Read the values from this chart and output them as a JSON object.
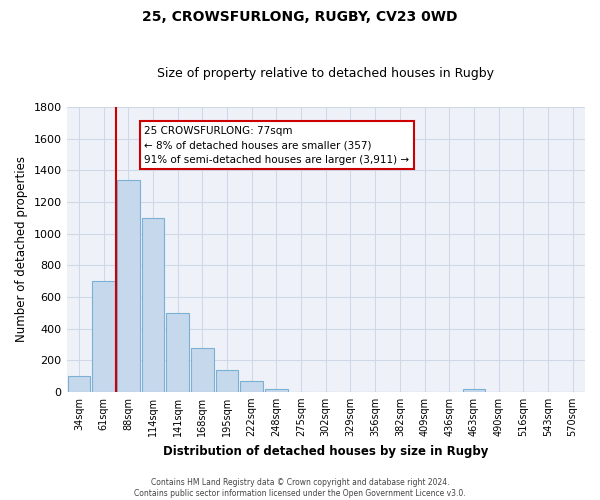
{
  "title1": "25, CROWSFURLONG, RUGBY, CV23 0WD",
  "title2": "Size of property relative to detached houses in Rugby",
  "xlabel": "Distribution of detached houses by size in Rugby",
  "ylabel": "Number of detached properties",
  "bar_labels": [
    "34sqm",
    "61sqm",
    "88sqm",
    "114sqm",
    "141sqm",
    "168sqm",
    "195sqm",
    "222sqm",
    "248sqm",
    "275sqm",
    "302sqm",
    "329sqm",
    "356sqm",
    "382sqm",
    "409sqm",
    "436sqm",
    "463sqm",
    "490sqm",
    "516sqm",
    "543sqm",
    "570sqm"
  ],
  "bar_values": [
    100,
    700,
    1340,
    1100,
    500,
    275,
    140,
    70,
    20,
    0,
    0,
    0,
    0,
    0,
    0,
    0,
    15,
    0,
    0,
    0,
    0
  ],
  "bar_color": "#c6d9ec",
  "bar_edge_color": "#7bafd4",
  "vline_color": "#cc0000",
  "vline_pos": 1.5,
  "ylim": [
    0,
    1800
  ],
  "yticks": [
    0,
    200,
    400,
    600,
    800,
    1000,
    1200,
    1400,
    1600,
    1800
  ],
  "annotation_title": "25 CROWSFURLONG: 77sqm",
  "annotation_line1": "← 8% of detached houses are smaller (357)",
  "annotation_line2": "91% of semi-detached houses are larger (3,911) →",
  "annotation_box_color": "#ffffff",
  "annotation_box_edge": "#cc0000",
  "footer1": "Contains HM Land Registry data © Crown copyright and database right 2024.",
  "footer2": "Contains public sector information licensed under the Open Government Licence v3.0.",
  "bg_color": "#ffffff",
  "grid_color": "#d0d8e8"
}
